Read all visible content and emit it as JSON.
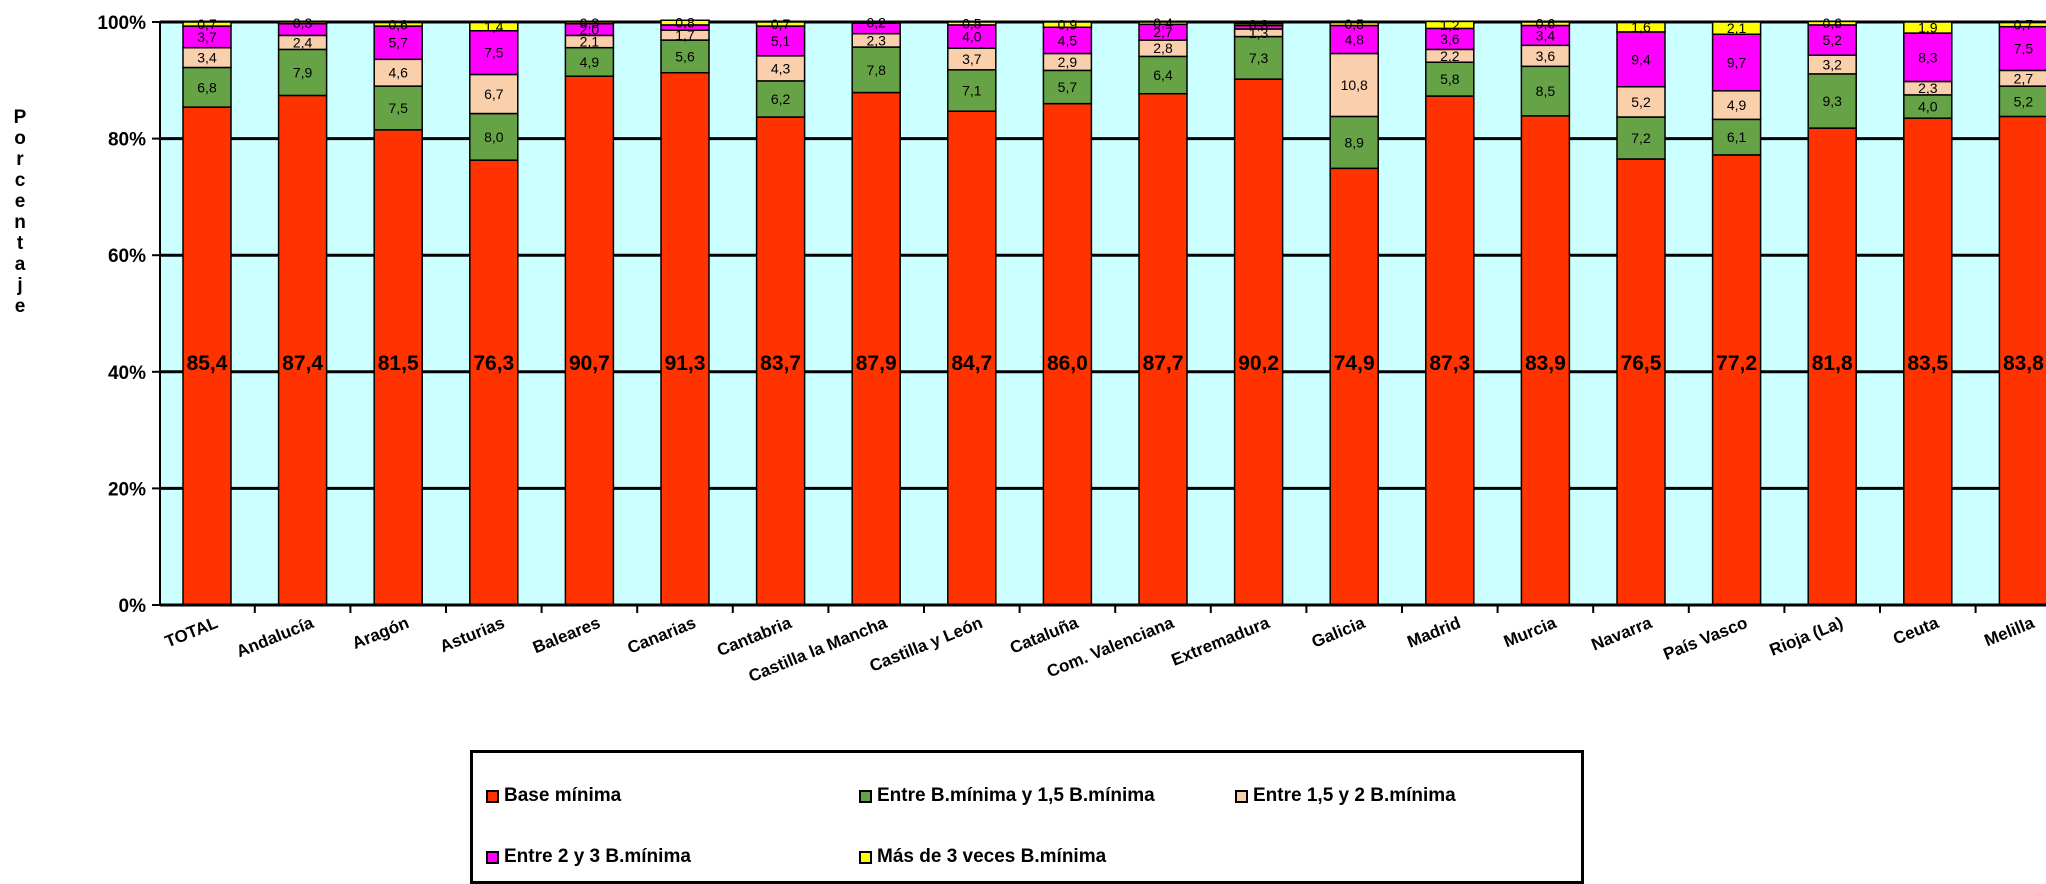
{
  "chart_data": {
    "type": "bar",
    "stacked": true,
    "ylabel": "Porcentaje",
    "ylim": [
      0,
      100
    ],
    "yticks": [
      "0%",
      "20%",
      "40%",
      "60%",
      "80%",
      "100%"
    ],
    "grid": true,
    "legend_position": "bottom",
    "categories": [
      "TOTAL",
      "Andalucía",
      "Aragón",
      "Asturias",
      "Baleares",
      "Canarias",
      "Cantabria",
      "Castilla la Mancha",
      "Castilla y León",
      "Cataluña",
      "Com. Valenciana",
      "Extremadura",
      "Galicia",
      "Madrid",
      "Murcia",
      "Navarra",
      "País Vasco",
      "Rioja (La)",
      "Ceuta",
      "Melilla"
    ],
    "series": [
      {
        "name": "Base mínima",
        "color": "#ff3300",
        "values": [
          85.4,
          87.4,
          81.5,
          76.3,
          90.7,
          91.3,
          83.7,
          87.9,
          84.7,
          86.0,
          87.7,
          90.2,
          74.9,
          87.3,
          83.9,
          76.5,
          77.2,
          81.8,
          83.5,
          83.8
        ],
        "labels": [
          "85,4",
          "87,4",
          "81,5",
          "76,3",
          "90,7",
          "91,3",
          "83,7",
          "87,9",
          "84,7",
          "86,0",
          "87,7",
          "90,2",
          "74,9",
          "87,3",
          "83,9",
          "76,5",
          "77,2",
          "81,8",
          "83,5",
          "83,8"
        ]
      },
      {
        "name": "Entre B.mínima y 1,5 B.mínima",
        "color": "#66a346",
        "values": [
          6.8,
          7.9,
          7.5,
          8.0,
          4.9,
          5.6,
          6.2,
          7.8,
          7.1,
          5.7,
          6.4,
          7.3,
          8.9,
          5.8,
          8.5,
          7.2,
          6.1,
          9.3,
          4.0,
          5.2
        ],
        "labels": [
          "6,8",
          "7,9",
          "7,5",
          "8,0",
          "4,9",
          "5,6",
          "6,2",
          "7,8",
          "7,1",
          "5,7",
          "6,4",
          "7,3",
          "8,9",
          "5,8",
          "8,5",
          "7,2",
          "6,1",
          "9,3",
          "4,0",
          "5,2"
        ]
      },
      {
        "name": "Entre 1,5 y 2 B.mínima",
        "color": "#f9cfac",
        "values": [
          3.4,
          2.4,
          4.6,
          6.7,
          2.1,
          1.7,
          4.3,
          2.3,
          3.7,
          2.9,
          2.8,
          1.3,
          10.8,
          2.2,
          3.6,
          5.2,
          4.9,
          3.2,
          2.3,
          2.7
        ],
        "labels": [
          "3,4",
          "2,4",
          "4,6",
          "6,7",
          "2,1",
          "1,7",
          "4,3",
          "2,3",
          "3,7",
          "2,9",
          "2,8",
          "1,3",
          "10,8",
          "2,2",
          "3,6",
          "5,2",
          "4,9",
          "3,2",
          "2,3",
          "2,7"
        ]
      },
      {
        "name": "Entre 2 y 3 B.mínima",
        "color": "#ff00ff",
        "values": [
          3.7,
          2.0,
          5.7,
          7.5,
          2.0,
          0.9,
          5.1,
          1.8,
          4.0,
          4.5,
          2.7,
          0.6,
          4.8,
          3.6,
          3.4,
          9.4,
          9.7,
          5.2,
          8.3,
          7.5
        ],
        "labels": [
          "3,7",
          "",
          "5,7",
          "7,5",
          "2,0",
          "",
          "5,1",
          "",
          "4,0",
          "4,5",
          "2,7",
          "",
          "4,8",
          "3,6",
          "3,4",
          "9,4",
          "9,7",
          "5,2",
          "8,3",
          "7,5"
        ]
      },
      {
        "name": "Más de 3 veces B.mínima",
        "color": "#ffff00",
        "values": [
          0.7,
          0.3,
          0.6,
          1.4,
          0.3,
          0.8,
          0.7,
          0.2,
          0.5,
          0.9,
          0.4,
          0.3,
          0.5,
          1.2,
          0.6,
          1.6,
          2.1,
          0.6,
          1.9,
          0.7
        ],
        "labels": [
          "0,7",
          "0,3",
          "0,6",
          "1,4",
          "0,3",
          "0,8",
          "0,7",
          "0,2",
          "0,5",
          "0,9",
          "0,4",
          "0,3",
          "0,5",
          "1,2",
          "0,6",
          "1,6",
          "2,1",
          "0,6",
          "1,9",
          "0,7"
        ]
      }
    ]
  }
}
